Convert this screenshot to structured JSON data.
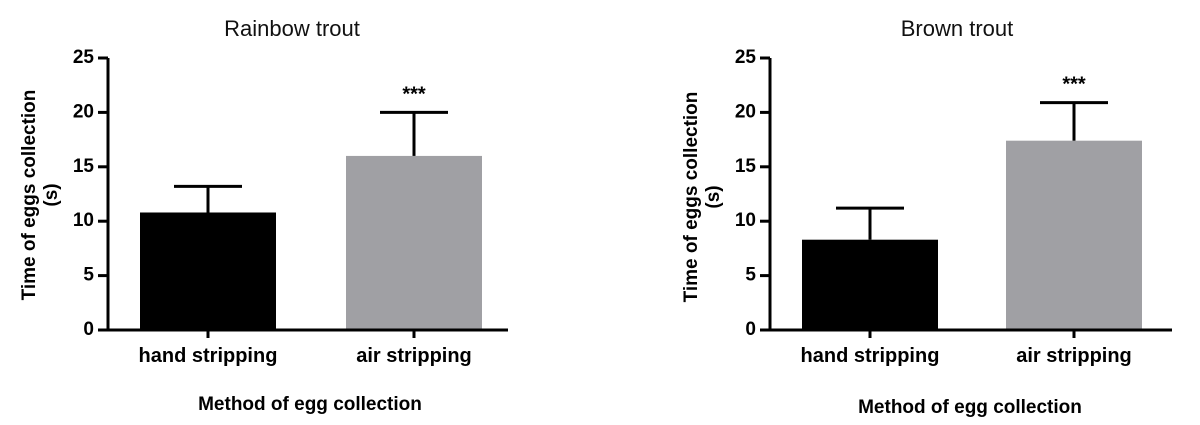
{
  "chart_data": [
    {
      "type": "bar",
      "title": "Rainbow trout",
      "xlabel": "Method of egg collection",
      "ylabel_lines": [
        "Time of eggs collection",
        "(s)"
      ],
      "categories": [
        "hand stripping",
        "air stripping"
      ],
      "values": [
        10.8,
        16.0
      ],
      "errors": [
        2.4,
        4.0
      ],
      "annotations": [
        "",
        "***"
      ],
      "colors": [
        "#000000",
        "#a0a0a4"
      ],
      "ylim": [
        0,
        25
      ],
      "yticks": [
        0,
        5,
        10,
        15,
        20,
        25
      ]
    },
    {
      "type": "bar",
      "title": "Brown trout",
      "xlabel": "Method of egg collection",
      "ylabel_lines": [
        "Time of eggs collection",
        "(s)"
      ],
      "categories": [
        "hand stripping",
        "air stripping"
      ],
      "values": [
        8.3,
        17.4
      ],
      "errors": [
        2.9,
        3.5
      ],
      "annotations": [
        "",
        "***"
      ],
      "colors": [
        "#000000",
        "#a0a0a4"
      ],
      "ylim": [
        0,
        25
      ],
      "yticks": [
        0,
        5,
        10,
        15,
        20,
        25
      ]
    }
  ]
}
